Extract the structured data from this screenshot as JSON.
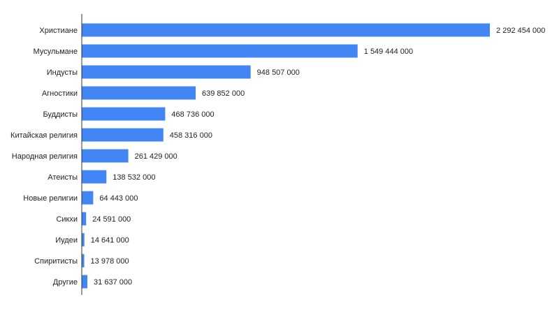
{
  "chart_data": {
    "type": "bar",
    "orientation": "horizontal",
    "categories": [
      "Христиане",
      "Мусульмане",
      "Индусты",
      "Агностики",
      "Буддисты",
      "Китайская религия",
      "Народная религия",
      "Атеисты",
      "Новые религии",
      "Сикхи",
      "Иудеи",
      "Спиритисты",
      "Другие"
    ],
    "values": [
      2292454000,
      1549444000,
      948507000,
      639852000,
      468736000,
      458316000,
      261429000,
      138532000,
      64443000,
      24591000,
      14641000,
      13978000,
      31637000
    ],
    "value_labels": [
      "2 292 454 000",
      "1 549 444 000",
      "948 507 000",
      "639 852 000",
      "468 736 000",
      "458 316 000",
      "261 429 000",
      "138 532 000",
      "64 443 000",
      "24 591 000",
      "14 641 000",
      "13 978 000",
      "31 637 000"
    ],
    "xlim": [
      0,
      2300000000
    ],
    "grid": false,
    "legend": false,
    "title": "",
    "xlabel": "",
    "ylabel": "",
    "colors": {
      "bar": "#4285f4",
      "axis": "#333333",
      "text": "#222222"
    }
  }
}
